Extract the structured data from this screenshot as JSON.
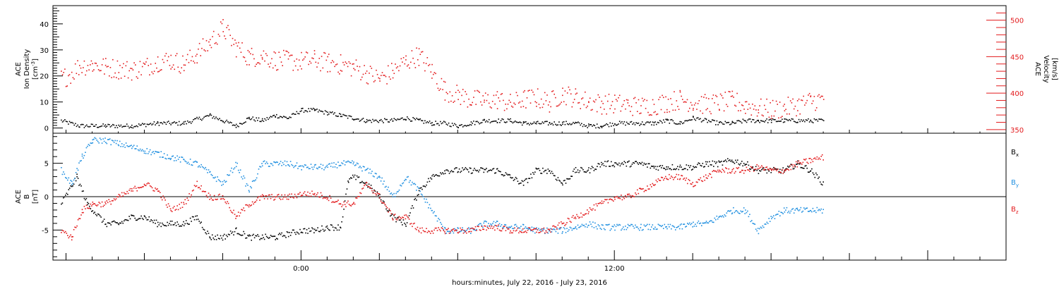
{
  "colors": {
    "black": "#000000",
    "red": "#e31a1c",
    "blue": "#1f8fe0",
    "frame": "#000000"
  },
  "xaxis": {
    "label": "hours:minutes, July 22, 2016 - July 23, 2016",
    "ticks": [
      "0:00",
      "12:00"
    ]
  },
  "chart_data": [
    {
      "type": "scatter",
      "panel": "plasma",
      "left_axis": {
        "title": "ACE",
        "title2": "Ion Density",
        "unit": "[cm",
        "unit_exp": "-3",
        "unit_end": "]",
        "ylim": [
          -2,
          47
        ],
        "ticks": [
          0,
          10,
          20,
          30,
          40
        ]
      },
      "right_axis": {
        "title": "ACE",
        "title2": "Velocity",
        "unit": "[km/s]",
        "ylim": [
          345,
          520
        ],
        "ticks": [
          350,
          400,
          450,
          500
        ]
      },
      "x_hours_range": [
        -9.5,
        27.0
      ],
      "series": [
        {
          "axis": "left",
          "color": "#000000",
          "x": [
            -9.2,
            -8.5,
            -7.5,
            -6.5,
            -5.5,
            -4.5,
            -3.5,
            -3.0,
            -2.5,
            -2.0,
            -1.5,
            -1.0,
            -0.5,
            0.0,
            0.5,
            1.0,
            1.5,
            2.0,
            2.5,
            3.0,
            3.5,
            4.0,
            4.5,
            5.0,
            5.5,
            6.0,
            6.5,
            7.0,
            7.5,
            8.0,
            8.5,
            9.0,
            9.5,
            10.0,
            10.5,
            11.0,
            11.5,
            12.0,
            12.5,
            13.0,
            13.5,
            14.0,
            14.5,
            15.0,
            15.5,
            16.0,
            16.5,
            17.0,
            17.5,
            18.0,
            18.5,
            19.0,
            19.5,
            20.0
          ],
          "y": [
            3,
            1,
            1,
            1,
            2,
            2,
            5,
            3,
            1,
            4,
            3,
            5,
            4,
            7,
            7,
            6,
            5,
            4,
            3,
            3,
            3,
            4,
            3,
            2,
            2,
            1,
            2,
            3,
            3,
            3,
            2,
            2,
            2,
            2,
            2,
            1,
            1,
            2,
            2,
            2,
            2,
            3,
            2,
            4,
            3,
            2,
            2,
            3,
            3,
            3,
            3,
            3,
            3,
            3
          ]
        },
        {
          "axis": "right",
          "color": "#e31a1c",
          "x": [
            -9.2,
            -8.8,
            -8.5,
            -8.0,
            -7.5,
            -7.0,
            -6.5,
            -6.0,
            -5.5,
            -5.0,
            -4.5,
            -4.0,
            -3.5,
            -3.0,
            -2.5,
            -2.0,
            -1.5,
            -1.0,
            -0.5,
            0.0,
            0.5,
            1.0,
            1.5,
            2.0,
            2.5,
            3.0,
            3.5,
            4.0,
            4.5,
            5.0,
            5.5,
            6.0,
            6.5,
            7.0,
            7.5,
            8.0,
            8.5,
            9.0,
            9.5,
            10.0,
            10.5,
            11.0,
            11.5,
            12.0,
            12.5,
            13.0,
            13.5,
            14.0,
            14.5,
            15.0,
            15.5,
            16.0,
            16.5,
            17.0,
            17.5,
            18.0,
            18.5,
            19.0,
            19.5,
            20.0
          ],
          "y": [
            420,
            428,
            438,
            440,
            436,
            434,
            432,
            436,
            444,
            446,
            440,
            455,
            470,
            490,
            464,
            450,
            452,
            446,
            445,
            444,
            446,
            442,
            440,
            436,
            428,
            420,
            430,
            444,
            452,
            430,
            404,
            398,
            392,
            390,
            392,
            386,
            392,
            394,
            388,
            400,
            394,
            389,
            386,
            386,
            384,
            382,
            384,
            388,
            392,
            388,
            385,
            387,
            390,
            384,
            380,
            378,
            380,
            384,
            390,
            392
          ]
        }
      ]
    },
    {
      "type": "scatter",
      "panel": "magnetic",
      "left_axis": {
        "title": "ACE",
        "title2": "B",
        "unit": "[nT]",
        "ylim": [
          -9.5,
          9.5
        ],
        "ticks": [
          -5,
          0,
          5
        ]
      },
      "x_hours_range": [
        -9.5,
        27.0
      ],
      "legend": [
        {
          "label": "B",
          "sub": "x",
          "color": "#000000"
        },
        {
          "label": "B",
          "sub": "y",
          "color": "#1f8fe0"
        },
        {
          "label": "B",
          "sub": "z",
          "color": "#e31a1c"
        }
      ],
      "series": [
        {
          "name": "Bx",
          "color": "#000000",
          "x": [
            -9.2,
            -8.6,
            -8.2,
            -7.5,
            -7.0,
            -6.5,
            -6.0,
            -5.5,
            -5.0,
            -4.5,
            -4.0,
            -3.5,
            -3.0,
            -2.5,
            -2.0,
            -1.5,
            -1.0,
            -0.5,
            0.0,
            0.5,
            1.0,
            1.5,
            1.8,
            2.0,
            2.5,
            3.0,
            3.5,
            4.0,
            4.5,
            5.0,
            5.5,
            6.0,
            6.5,
            7.0,
            7.5,
            8.0,
            8.5,
            9.0,
            9.5,
            10.0,
            10.5,
            11.0,
            11.5,
            12.0,
            12.5,
            13.0,
            13.5,
            14.0,
            14.5,
            15.0,
            15.5,
            16.0,
            16.5,
            17.0,
            17.5,
            18.0,
            18.5,
            19.0,
            19.5,
            20.0
          ],
          "y": [
            -1,
            3,
            -1,
            -4,
            -4,
            -3,
            -3,
            -4,
            -4,
            -4,
            -3,
            -6,
            -6,
            -5,
            -6,
            -6,
            -6,
            -5.5,
            -5,
            -5,
            -4.5,
            -4.5,
            2.5,
            3,
            2,
            0,
            -3,
            -4,
            1,
            3,
            4,
            4,
            4,
            4,
            4,
            3,
            2,
            4,
            4,
            2,
            4,
            4,
            5,
            5,
            5,
            5,
            4.5,
            4.5,
            4.5,
            4.5,
            5,
            5,
            5.5,
            5,
            4,
            4,
            4,
            5,
            4,
            2
          ]
        },
        {
          "name": "By",
          "color": "#1f8fe0",
          "x": [
            -9.2,
            -8.8,
            -8.4,
            -8.0,
            -7.5,
            -7.0,
            -6.5,
            -6.0,
            -5.5,
            -5.0,
            -4.5,
            -4.0,
            -3.5,
            -3.0,
            -2.5,
            -2.0,
            -1.5,
            -1.0,
            -0.5,
            0.0,
            0.5,
            1.0,
            1.5,
            2.0,
            2.5,
            3.0,
            3.5,
            4.0,
            4.5,
            5.0,
            5.5,
            6.0,
            6.5,
            7.0,
            7.5,
            8.0,
            8.5,
            9.0,
            9.5,
            10.0,
            10.5,
            11.0,
            11.5,
            12.0,
            12.5,
            13.0,
            13.5,
            14.0,
            14.5,
            15.0,
            15.5,
            16.0,
            16.5,
            17.0,
            17.5,
            18.0,
            18.5,
            19.0,
            19.5,
            20.0
          ],
          "y": [
            4,
            2,
            6,
            8.5,
            8.5,
            8,
            7.5,
            7,
            6.5,
            6,
            5.5,
            5,
            3.5,
            2,
            5,
            1,
            5,
            5,
            5,
            4.5,
            4.5,
            4.5,
            5,
            5,
            4,
            3,
            0,
            3,
            1,
            -2,
            -5,
            -5,
            -5,
            -4,
            -4,
            -4.5,
            -4.5,
            -5,
            -5,
            -5,
            -4.5,
            -4,
            -4.5,
            -4.5,
            -4.5,
            -4.5,
            -4.5,
            -4.5,
            -4.5,
            -4,
            -4,
            -3,
            -2,
            -2,
            -5,
            -3,
            -2,
            -2,
            -2,
            -2
          ]
        },
        {
          "name": "Bz",
          "color": "#e31a1c",
          "x": [
            -9.2,
            -8.8,
            -8.4,
            -8.0,
            -7.5,
            -7.0,
            -6.5,
            -6.0,
            -5.5,
            -5.0,
            -4.5,
            -4.0,
            -3.5,
            -3.0,
            -2.5,
            -2.0,
            -1.5,
            -1.0,
            -0.5,
            0.0,
            0.5,
            1.0,
            1.5,
            2.0,
            2.5,
            3.0,
            3.5,
            4.0,
            4.5,
            5.0,
            5.5,
            6.0,
            6.5,
            7.0,
            7.5,
            8.0,
            8.5,
            9.0,
            9.5,
            10.0,
            10.5,
            11.0,
            11.5,
            12.0,
            12.5,
            13.0,
            13.5,
            14.0,
            14.5,
            15.0,
            15.5,
            16.0,
            16.5,
            17.0,
            17.5,
            18.0,
            18.5,
            19.0,
            19.5,
            20.0
          ],
          "y": [
            -5,
            -6,
            -2,
            -1,
            -1,
            0,
            1,
            2,
            1,
            -2,
            -1,
            2,
            0,
            0,
            -3,
            -1,
            0,
            0,
            0,
            0.5,
            0.5,
            0,
            -1,
            -1,
            2,
            0,
            -3,
            -3,
            -5,
            -5,
            -5,
            -5,
            -5,
            -4.5,
            -4.5,
            -5,
            -5,
            -5,
            -5,
            -4,
            -3,
            -2,
            -1,
            0,
            0,
            1,
            2,
            3,
            3,
            2,
            3,
            4,
            4,
            4,
            4.5,
            4,
            4,
            5,
            5.5,
            6
          ]
        }
      ]
    }
  ]
}
